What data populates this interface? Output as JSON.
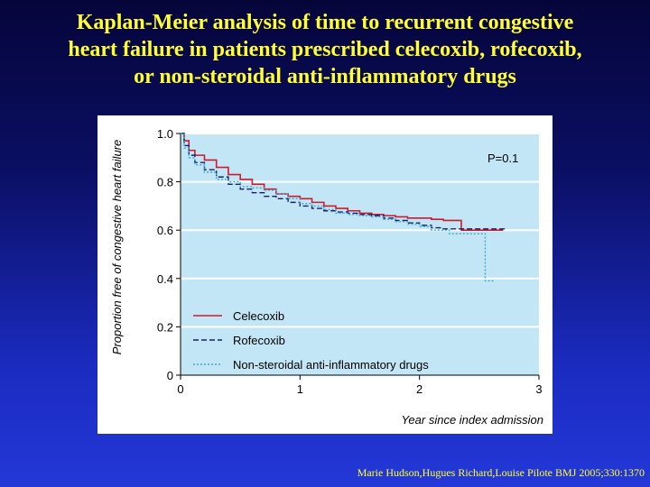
{
  "slide": {
    "title_lines": [
      "Kaplan-Meier analysis of time to recurrent congestive",
      "heart failure in patients prescribed celecoxib, rofecoxib,",
      "or non-steroidal anti-inflammatory drugs"
    ],
    "citation": "Marie Hudson,Hugues Richard,Louise Pilote BMJ 2005;330:1370"
  },
  "colors": {
    "title": "#ffff33",
    "plot_bg": "#c3e6f7",
    "celecoxib": "#cc1a2e",
    "rofecoxib": "#1a1f6e",
    "nsaid": "#3aa8c8"
  },
  "chart_data": {
    "type": "line",
    "step": true,
    "xlabel": "Year since index admission",
    "ylabel": "Proportion free of congestive heart failure",
    "xlim": [
      0,
      3
    ],
    "ylim": [
      0,
      1.0
    ],
    "x_ticks": [
      "0",
      "1",
      "2",
      "3"
    ],
    "y_ticks": [
      "0",
      "0.2",
      "0.4",
      "0.6",
      "0.8",
      "1.0"
    ],
    "annotation": "P=0.1",
    "grid": "horizontal",
    "legend_position": "bottom-left",
    "series": [
      {
        "name": "Celecoxib",
        "style": "solid",
        "x": [
          0,
          0.03,
          0.07,
          0.12,
          0.2,
          0.3,
          0.4,
          0.5,
          0.6,
          0.7,
          0.8,
          0.9,
          1.0,
          1.1,
          1.2,
          1.3,
          1.4,
          1.5,
          1.6,
          1.7,
          1.8,
          1.9,
          2.0,
          2.1,
          2.2,
          2.35,
          2.5,
          2.7
        ],
        "y": [
          1.0,
          0.97,
          0.93,
          0.91,
          0.89,
          0.86,
          0.83,
          0.81,
          0.79,
          0.77,
          0.75,
          0.74,
          0.73,
          0.715,
          0.7,
          0.69,
          0.68,
          0.67,
          0.665,
          0.66,
          0.655,
          0.65,
          0.65,
          0.645,
          0.64,
          0.6,
          0.6,
          0.6
        ]
      },
      {
        "name": "Rofecoxib",
        "style": "dashed",
        "x": [
          0,
          0.03,
          0.07,
          0.12,
          0.2,
          0.3,
          0.4,
          0.5,
          0.6,
          0.7,
          0.8,
          0.9,
          1.0,
          1.1,
          1.2,
          1.3,
          1.4,
          1.5,
          1.6,
          1.7,
          1.8,
          1.9,
          2.0,
          2.1,
          2.2,
          2.4,
          2.6,
          2.72
        ],
        "y": [
          1.0,
          0.95,
          0.91,
          0.88,
          0.85,
          0.82,
          0.79,
          0.77,
          0.755,
          0.74,
          0.73,
          0.715,
          0.7,
          0.69,
          0.68,
          0.675,
          0.67,
          0.665,
          0.66,
          0.65,
          0.64,
          0.63,
          0.62,
          0.61,
          0.605,
          0.605,
          0.605,
          0.605
        ]
      },
      {
        "name": "Non-steroidal anti-inflammatory drugs",
        "style": "dotted",
        "x": [
          0,
          0.03,
          0.07,
          0.12,
          0.2,
          0.3,
          0.4,
          0.5,
          0.6,
          0.7,
          0.8,
          0.9,
          1.0,
          1.1,
          1.2,
          1.3,
          1.4,
          1.5,
          1.6,
          1.7,
          1.8,
          1.9,
          2.0,
          2.1,
          2.25,
          2.4,
          2.55,
          2.62
        ],
        "y": [
          1.0,
          0.94,
          0.9,
          0.87,
          0.84,
          0.81,
          0.8,
          0.78,
          0.775,
          0.765,
          0.75,
          0.73,
          0.71,
          0.7,
          0.685,
          0.67,
          0.665,
          0.66,
          0.655,
          0.645,
          0.635,
          0.625,
          0.615,
          0.6,
          0.585,
          0.585,
          0.39,
          0.39
        ]
      }
    ]
  }
}
